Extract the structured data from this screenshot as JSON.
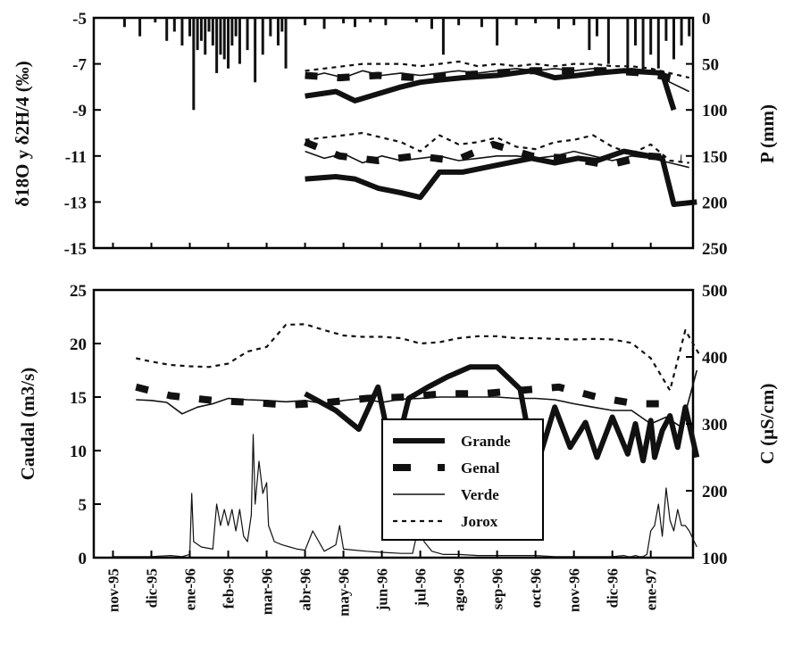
{
  "chart_data": [
    {
      "type": "line",
      "panel": "top",
      "ylabel_left": "δ18O y δ2H/4 (‰)",
      "ylabel_right": "P (mm)",
      "y_ticks_left": [
        "-5",
        "-7",
        "-9",
        "-11",
        "-13",
        "-15"
      ],
      "y_ticks_right": [
        "0",
        "50",
        "100",
        "150",
        "200",
        "250"
      ],
      "ylim_left": [
        -15,
        -5
      ],
      "ylim_right": [
        250,
        0
      ],
      "series": [
        {
          "name": "Grande",
          "style": "thick",
          "group": "δ2H/4",
          "x": [
            5.0,
            5.8,
            6.3,
            6.9,
            7.5,
            8.0,
            8.5,
            9.1,
            10.0,
            10.9,
            11.5,
            12.1,
            12.6,
            13.3,
            14.3,
            14.6
          ],
          "values": [
            -8.4,
            -8.2,
            -8.6,
            -8.3,
            -8.0,
            -7.8,
            -7.7,
            -7.6,
            -7.5,
            -7.3,
            -7.6,
            -7.5,
            -7.4,
            -7.3,
            -7.4,
            -9.0
          ]
        },
        {
          "name": "Genal",
          "style": "dashed-thick",
          "group": "δ2H/4",
          "x": [
            5.0,
            5.9,
            6.9,
            7.9,
            8.9,
            9.9,
            10.9,
            11.9,
            12.9,
            13.9,
            14.8
          ],
          "values": [
            -7.5,
            -7.6,
            -7.5,
            -7.6,
            -7.5,
            -7.4,
            -7.3,
            -7.3,
            -7.3,
            -7.4,
            -7.7
          ]
        },
        {
          "name": "Verde",
          "style": "thin",
          "group": "δ2H/4",
          "x": [
            5.0,
            5.5,
            6.0,
            6.5,
            7.0,
            7.5,
            8.0,
            8.5,
            9.0,
            9.5,
            10.0,
            10.5,
            11.0,
            11.5,
            12.0,
            12.5,
            13.0,
            13.5,
            14.0,
            14.5,
            15.0
          ],
          "values": [
            -7.6,
            -7.4,
            -7.6,
            -7.3,
            -7.5,
            -7.4,
            -7.5,
            -7.4,
            -7.3,
            -7.4,
            -7.3,
            -7.2,
            -7.3,
            -7.2,
            -7.3,
            -7.2,
            -7.3,
            -7.2,
            -7.3,
            -7.8,
            -8.2
          ]
        },
        {
          "name": "Jorox",
          "style": "dotted",
          "group": "δ2H/4",
          "x": [
            5.0,
            5.5,
            6.0,
            6.5,
            7.0,
            7.5,
            8.0,
            8.5,
            9.0,
            9.5,
            10.0,
            10.5,
            11.0,
            11.5,
            12.0,
            12.5,
            13.0,
            13.5,
            14.0,
            14.5,
            15.0
          ],
          "values": [
            -7.3,
            -7.2,
            -7.1,
            -7.0,
            -7.0,
            -7.0,
            -7.1,
            -7.0,
            -6.9,
            -7.1,
            -7.0,
            -7.1,
            -7.0,
            -7.1,
            -7.0,
            -7.0,
            -7.1,
            -7.1,
            -7.2,
            -7.4,
            -7.6
          ]
        },
        {
          "name": "Grande",
          "style": "thick",
          "group": "δ18O",
          "x": [
            5.0,
            5.8,
            6.3,
            6.9,
            7.5,
            8.0,
            8.5,
            9.1,
            10.0,
            10.9,
            11.5,
            12.1,
            12.6,
            13.3,
            14.3,
            14.6,
            15.2
          ],
          "values": [
            -12.0,
            -11.9,
            -12.0,
            -12.4,
            -12.6,
            -12.8,
            -11.7,
            -11.7,
            -11.4,
            -11.1,
            -11.3,
            -11.1,
            -11.2,
            -10.8,
            -11.1,
            -13.1,
            -13.0
          ]
        },
        {
          "name": "Genal",
          "style": "dashed-thick",
          "group": "δ18O",
          "x": [
            5.0,
            5.9,
            6.9,
            7.9,
            8.9,
            9.9,
            10.9,
            11.9,
            12.9,
            13.9,
            14.8
          ],
          "values": [
            -10.4,
            -11.0,
            -11.2,
            -11.0,
            -11.2,
            -10.5,
            -11.0,
            -11.1,
            -11.4,
            -11.0,
            -11.1
          ]
        },
        {
          "name": "Verde",
          "style": "thin",
          "group": "δ18O",
          "x": [
            5.0,
            5.5,
            6.0,
            6.5,
            7.0,
            7.5,
            8.0,
            8.5,
            9.0,
            9.5,
            10.0,
            10.5,
            11.0,
            11.5,
            12.0,
            12.5,
            13.0,
            13.5,
            14.0,
            14.5,
            15.0
          ],
          "values": [
            -10.8,
            -11.1,
            -10.9,
            -11.3,
            -11.0,
            -11.2,
            -11.1,
            -11.0,
            -11.2,
            -11.1,
            -11.0,
            -11.0,
            -11.1,
            -11.0,
            -10.8,
            -11.0,
            -11.2,
            -11.0,
            -11.1,
            -11.3,
            -11.5
          ]
        },
        {
          "name": "Jorox",
          "style": "dotted",
          "group": "δ18O",
          "x": [
            5.0,
            5.5,
            6.0,
            6.5,
            7.0,
            7.5,
            8.0,
            8.5,
            9.0,
            9.5,
            10.0,
            10.5,
            11.0,
            11.5,
            12.0,
            12.5,
            13.0,
            13.5,
            14.0,
            14.5,
            15.0
          ],
          "values": [
            -10.3,
            -10.2,
            -10.1,
            -10.0,
            -10.2,
            -10.4,
            -10.8,
            -10.1,
            -10.5,
            -10.4,
            -10.2,
            -10.6,
            -10.7,
            -10.4,
            -10.3,
            -10.1,
            -10.6,
            -10.9,
            -10.5,
            -11.2,
            -11.3
          ]
        }
      ],
      "precipitation": {
        "x": [
          0.3,
          0.7,
          1.1,
          1.4,
          1.6,
          1.8,
          2.0,
          2.1,
          2.2,
          2.3,
          2.4,
          2.5,
          2.6,
          2.7,
          2.8,
          2.9,
          3.0,
          3.1,
          3.2,
          3.3,
          3.5,
          3.7,
          3.9,
          4.1,
          4.3,
          4.4,
          4.5,
          5.0,
          5.5,
          6.0,
          6.3,
          6.7,
          7.1,
          7.9,
          8.3,
          8.6,
          9.0,
          9.6,
          10.0,
          10.5,
          11.0,
          11.6,
          12.0,
          12.4,
          12.6,
          12.9,
          13.4,
          13.6,
          13.8,
          14.0,
          14.2,
          14.4,
          14.6,
          14.8,
          15.0
        ],
        "values": [
          10,
          20,
          5,
          25,
          15,
          30,
          20,
          100,
          35,
          25,
          40,
          15,
          30,
          60,
          40,
          45,
          55,
          30,
          20,
          50,
          35,
          70,
          40,
          20,
          30,
          15,
          55,
          8,
          12,
          6,
          10,
          5,
          8,
          5,
          12,
          40,
          8,
          10,
          30,
          8,
          6,
          12,
          8,
          35,
          20,
          50,
          55,
          30,
          60,
          40,
          55,
          25,
          45,
          30,
          20
        ]
      }
    },
    {
      "type": "line",
      "panel": "bottom",
      "ylabel_left": "Caudal (m3/s)",
      "ylabel_right": "C (μS/cm)",
      "y_ticks_left": [
        "0",
        "5",
        "10",
        "15",
        "20",
        "25"
      ],
      "y_ticks_right": [
        "100",
        "200",
        "300",
        "400",
        "500"
      ],
      "ylim_left": [
        0,
        25
      ],
      "ylim_right": [
        100,
        500
      ],
      "series": [
        {
          "name": "Grande",
          "style": "thick",
          "axis": "right",
          "x": [
            5.0,
            5.8,
            6.4,
            6.9,
            7.3,
            7.7,
            8.2,
            8.7,
            9.3,
            10.0,
            10.6,
            11.0,
            11.5,
            11.9,
            12.3,
            12.6,
            13.0,
            13.4,
            13.6,
            13.8,
            14.0,
            14.1,
            14.3,
            14.5,
            14.7,
            14.9,
            15.2
          ],
          "values": [
            345,
            320,
            292,
            355,
            245,
            338,
            355,
            370,
            385,
            385,
            352,
            230,
            325,
            265,
            302,
            250,
            310,
            255,
            300,
            245,
            305,
            250,
            290,
            312,
            265,
            325,
            250
          ]
        },
        {
          "name": "Genal",
          "style": "dashed-thick",
          "axis": "right",
          "x": [
            0.6,
            1.5,
            2.6,
            3.6,
            4.6,
            5.6,
            6.6,
            7.6,
            8.6,
            9.6,
            10.6,
            11.6,
            12.6,
            13.6,
            14.4
          ],
          "values": [
            355,
            342,
            335,
            332,
            328,
            332,
            338,
            340,
            345,
            345,
            350,
            355,
            340,
            330,
            330
          ]
        },
        {
          "name": "Verde",
          "style": "thin",
          "axis": "right",
          "x": [
            0.6,
            1.0,
            1.4,
            1.8,
            2.2,
            2.6,
            3.0,
            3.5,
            4.0,
            4.5,
            5.0,
            5.5,
            6.0,
            6.5,
            7.0,
            7.5,
            8.0,
            8.5,
            9.0,
            9.5,
            10.0,
            10.5,
            11.0,
            11.5,
            12.0,
            12.5,
            13.0,
            13.5,
            14.0,
            14.4,
            14.8,
            15.2
          ],
          "values": [
            336,
            335,
            332,
            315,
            325,
            330,
            338,
            336,
            335,
            333,
            335,
            330,
            335,
            338,
            332,
            337,
            338,
            340,
            340,
            340,
            340,
            338,
            338,
            336,
            330,
            325,
            320,
            320,
            300,
            310,
            295,
            380
          ]
        },
        {
          "name": "Jorox",
          "style": "dotted",
          "axis": "right",
          "x": [
            0.6,
            1.0,
            1.5,
            2.0,
            2.5,
            3.0,
            3.5,
            4.0,
            4.5,
            5.0,
            5.5,
            6.0,
            6.5,
            7.0,
            7.5,
            8.0,
            8.5,
            9.0,
            9.5,
            10.0,
            10.5,
            11.0,
            11.5,
            12.0,
            12.5,
            13.0,
            13.5,
            14.0,
            14.5,
            14.9,
            15.3
          ],
          "values": [
            398,
            393,
            388,
            386,
            385,
            390,
            408,
            415,
            448,
            449,
            440,
            432,
            430,
            430,
            428,
            420,
            422,
            428,
            431,
            431,
            428,
            428,
            427,
            426,
            427,
            426,
            421,
            398,
            350,
            440,
            400
          ]
        },
        {
          "name": "Caudal",
          "style": "thin-flow",
          "axis": "left",
          "x": [
            0.0,
            1.0,
            1.5,
            1.8,
            2.0,
            2.05,
            2.1,
            2.3,
            2.6,
            2.7,
            2.8,
            2.9,
            3.0,
            3.1,
            3.2,
            3.3,
            3.4,
            3.5,
            3.6,
            3.65,
            3.7,
            3.8,
            3.9,
            4.0,
            4.05,
            4.2,
            4.4,
            4.6,
            4.8,
            5.0,
            5.2,
            5.5,
            5.8,
            5.9,
            6.0,
            6.3,
            6.6,
            7.0,
            7.5,
            7.8,
            7.9,
            8.0,
            8.1,
            8.3,
            8.6,
            9.0,
            9.5,
            10.0,
            11.0,
            11.5,
            12.0,
            12.5,
            13.0,
            13.3,
            13.4,
            13.5,
            13.6,
            13.7,
            13.8,
            13.9,
            14.0,
            14.1,
            14.2,
            14.3,
            14.4,
            14.5,
            14.6,
            14.7,
            14.8,
            14.9,
            15.0,
            15.2
          ],
          "values": [
            0.1,
            0.1,
            0.2,
            0.1,
            0.3,
            6.0,
            1.5,
            1.0,
            0.8,
            5.0,
            3.0,
            4.5,
            3.0,
            4.5,
            2.5,
            4.5,
            2.0,
            1.5,
            4.0,
            11.5,
            5.0,
            9.0,
            6.0,
            7.0,
            3.0,
            1.5,
            1.2,
            1.0,
            0.8,
            0.7,
            2.5,
            0.6,
            1.2,
            3.0,
            0.8,
            0.7,
            0.6,
            0.5,
            0.4,
            0.4,
            2.0,
            3.0,
            1.5,
            0.6,
            0.3,
            0.3,
            0.2,
            0.2,
            0.2,
            0.1,
            0.1,
            0.1,
            0.1,
            0.2,
            0.1,
            0.1,
            0.2,
            0.1,
            0.1,
            0.3,
            2.5,
            3.0,
            5.0,
            2.0,
            6.5,
            3.5,
            2.5,
            4.5,
            3.0,
            3.0,
            2.5,
            1.0
          ]
        }
      ]
    }
  ],
  "x_tick_labels": [
    "nov-95",
    "dic-95",
    "ene-96",
    "feb-96",
    "mar-96",
    "abr-96",
    "may-96",
    "jun-96",
    "jul-96",
    "ago-96",
    "sep-96",
    "oct-96",
    "nov-96",
    "dic-96",
    "ene-97"
  ],
  "legend": {
    "items": [
      {
        "label": "Grande",
        "style": "thick"
      },
      {
        "label": "Genal",
        "style": "dashed-thick"
      },
      {
        "label": "Verde",
        "style": "thin"
      },
      {
        "label": "Jorox",
        "style": "dotted"
      }
    ],
    "placement": "bottom-center inside lower panel"
  }
}
